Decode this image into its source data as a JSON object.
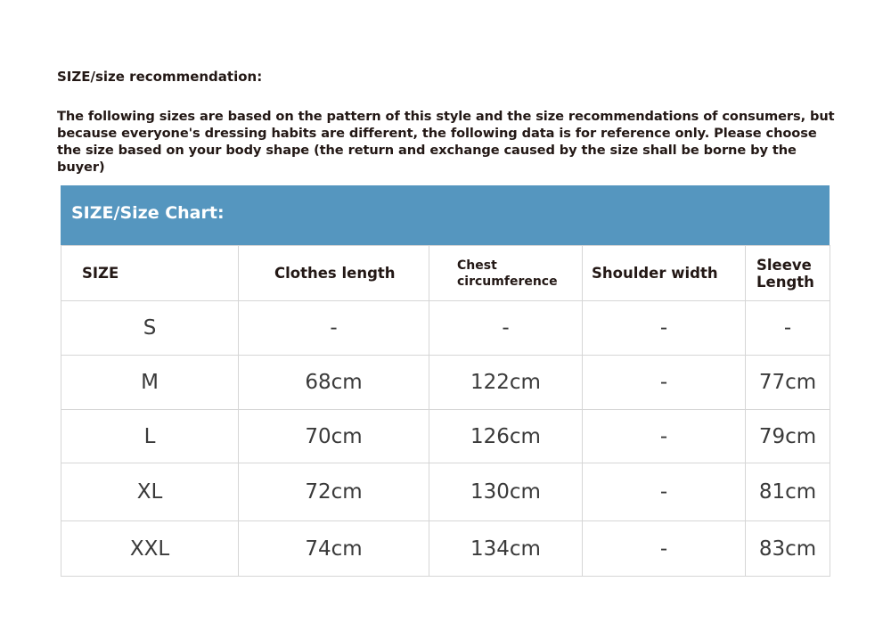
{
  "heading": "SIZE/size recommendation:",
  "intro": "The following sizes are based on the pattern of this style and the size recommendations of consumers, but because everyone's dressing habits are different, the following data is for reference only. Please choose the size based on your body shape (the return and exchange caused by the size shall be borne by the buyer)",
  "table": {
    "title": "SIZE/Size Chart:",
    "header_color": "#5596bf",
    "columns": [
      "SIZE",
      "Clothes length",
      "Chest circumference",
      "Shoulder width",
      "Sleeve Length"
    ],
    "rows": [
      [
        "S",
        "-",
        "-",
        "-",
        "-"
      ],
      [
        "M",
        "68cm",
        "122cm",
        "-",
        "77cm"
      ],
      [
        "L",
        "70cm",
        "126cm",
        "-",
        "79cm"
      ],
      [
        "XL",
        "72cm",
        "130cm",
        "-",
        "81cm"
      ],
      [
        "XXL",
        "74cm",
        "134cm",
        "-",
        "83cm"
      ]
    ]
  }
}
